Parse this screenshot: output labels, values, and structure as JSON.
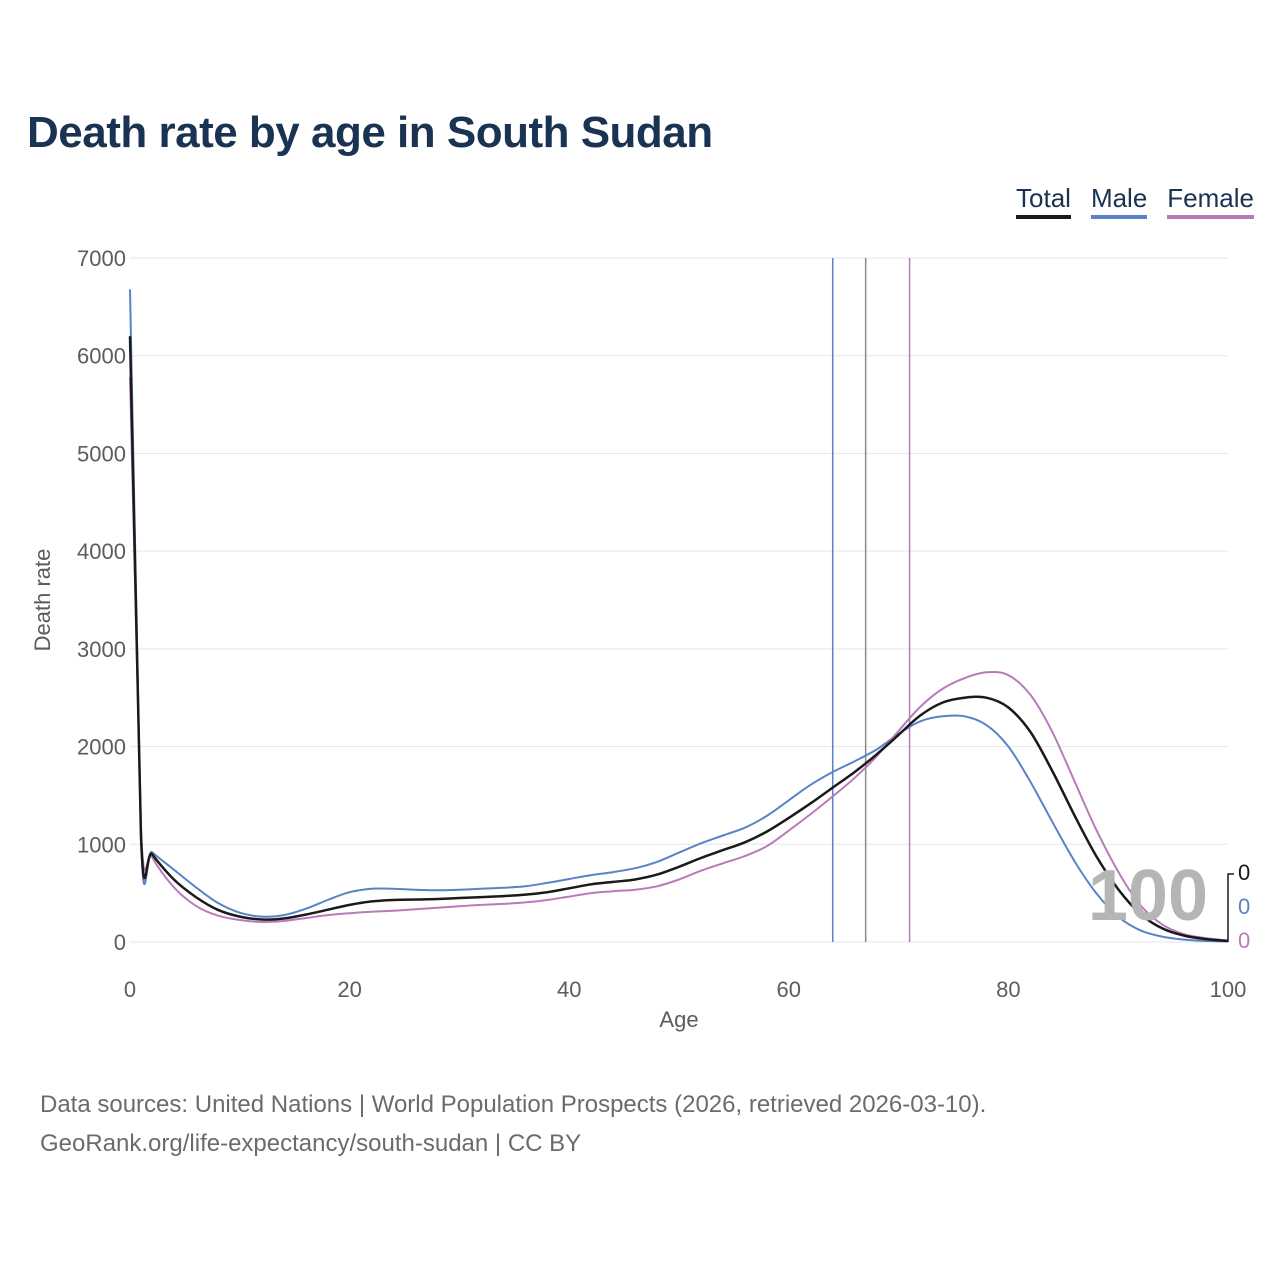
{
  "chart_data": {
    "type": "line",
    "title": "Death rate by age in South Sudan",
    "xlabel": "Age",
    "ylabel": "Death rate",
    "xlim": [
      0,
      100
    ],
    "ylim": [
      0,
      7000
    ],
    "x_ticks": [
      "0",
      "20",
      "40",
      "60",
      "80",
      "100"
    ],
    "y_ticks": [
      "0",
      "1000",
      "2000",
      "3000",
      "4000",
      "5000",
      "6000",
      "7000"
    ],
    "x": [
      0,
      1,
      2,
      4,
      6,
      8,
      10,
      12,
      14,
      16,
      18,
      20,
      22,
      24,
      26,
      28,
      30,
      32,
      34,
      36,
      38,
      40,
      42,
      44,
      46,
      48,
      50,
      52,
      54,
      56,
      58,
      60,
      62,
      64,
      66,
      68,
      70,
      72,
      74,
      76,
      78,
      80,
      82,
      84,
      86,
      88,
      90,
      92,
      94,
      96,
      98,
      100
    ],
    "series": [
      {
        "name": "Total",
        "color": "#1a1a1a",
        "life_expectancy": 67,
        "end_label": "0",
        "values": [
          6200,
          1080,
          900,
          640,
          460,
          330,
          260,
          230,
          240,
          280,
          330,
          380,
          415,
          430,
          435,
          440,
          450,
          460,
          470,
          485,
          510,
          550,
          590,
          615,
          640,
          690,
          770,
          860,
          940,
          1020,
          1130,
          1270,
          1420,
          1580,
          1740,
          1920,
          2120,
          2320,
          2450,
          2500,
          2500,
          2400,
          2150,
          1750,
          1300,
          880,
          540,
          290,
          140,
          65,
          30,
          10
        ]
      },
      {
        "name": "Male",
        "color": "#5a83c7",
        "life_expectancy": 64,
        "end_label": "0",
        "values": [
          6680,
          1040,
          920,
          740,
          560,
          400,
          300,
          260,
          275,
          340,
          430,
          510,
          545,
          545,
          535,
          530,
          535,
          545,
          555,
          570,
          605,
          645,
          685,
          715,
          755,
          820,
          915,
          1010,
          1090,
          1170,
          1290,
          1450,
          1610,
          1740,
          1850,
          1970,
          2130,
          2260,
          2310,
          2310,
          2220,
          2000,
          1640,
          1230,
          830,
          500,
          260,
          120,
          55,
          25,
          10,
          5
        ]
      },
      {
        "name": "Female",
        "color": "#b97ab9",
        "life_expectancy": 71,
        "end_label": "0",
        "values": [
          5780,
          1160,
          870,
          560,
          370,
          270,
          225,
          205,
          215,
          245,
          275,
          295,
          310,
          320,
          335,
          350,
          365,
          380,
          390,
          405,
          430,
          465,
          500,
          520,
          535,
          570,
          640,
          730,
          805,
          880,
          980,
          1140,
          1310,
          1490,
          1680,
          1900,
          2160,
          2410,
          2590,
          2700,
          2760,
          2730,
          2530,
          2150,
          1650,
          1150,
          720,
          380,
          180,
          80,
          40,
          15
        ]
      }
    ],
    "cursor_age": "100"
  },
  "legend": {
    "total": "Total",
    "male": "Male",
    "female": "Female"
  },
  "footer": {
    "sources": "Data sources: United Nations | World Population Prospects (2026, retrieved 2026-03-10).",
    "credit": "GeoRank.org/life-expectancy/south-sudan | CC BY"
  }
}
